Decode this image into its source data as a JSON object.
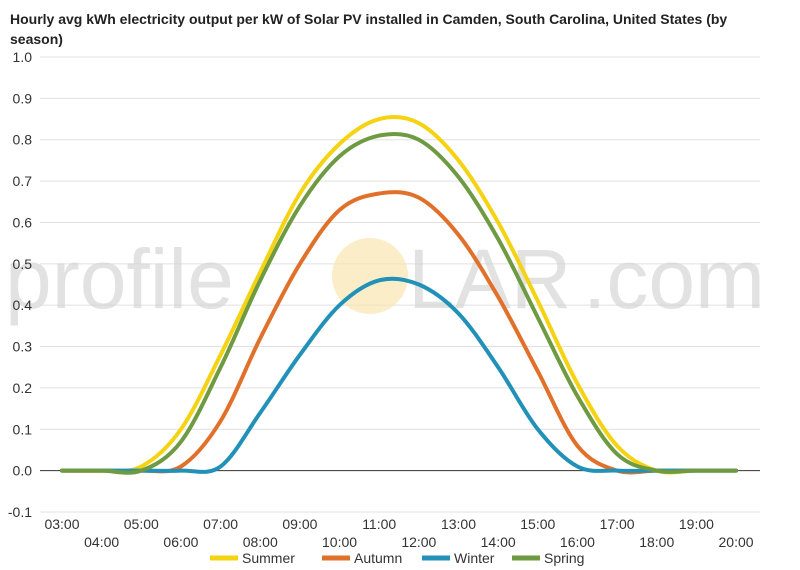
{
  "chart_data": {
    "type": "line",
    "title": "Hourly avg kWh electricity output per kW of Solar PV installed in Camden, South Carolina, United States (by season)",
    "xlabel": "",
    "ylabel": "",
    "x": [
      "03:00",
      "04:00",
      "05:00",
      "06:00",
      "07:00",
      "08:00",
      "09:00",
      "10:00",
      "11:00",
      "12:00",
      "13:00",
      "14:00",
      "15:00",
      "16:00",
      "17:00",
      "18:00",
      "19:00",
      "20:00"
    ],
    "ylim": [
      -0.1,
      1.0
    ],
    "yticks": [
      "1.0",
      "0.9",
      "0.8",
      "0.7",
      "0.6",
      "0.5",
      "0.4",
      "0.3",
      "0.2",
      "0.1",
      "0.0",
      "-0.1"
    ],
    "grid": true,
    "legend": "bottom",
    "series": [
      {
        "name": "Summer",
        "color": "#f5d312",
        "values": [
          0,
          0,
          0.01,
          0.1,
          0.28,
          0.48,
          0.67,
          0.79,
          0.85,
          0.84,
          0.75,
          0.6,
          0.41,
          0.21,
          0.06,
          0.0,
          0,
          0
        ]
      },
      {
        "name": "Autumn",
        "color": "#e0702a",
        "values": [
          0,
          0,
          0,
          0.01,
          0.12,
          0.32,
          0.5,
          0.63,
          0.67,
          0.66,
          0.57,
          0.42,
          0.24,
          0.06,
          0.0,
          0,
          0,
          0
        ]
      },
      {
        "name": "Winter",
        "color": "#2191b8",
        "values": [
          0,
          0,
          0,
          0,
          0.01,
          0.14,
          0.28,
          0.4,
          0.46,
          0.45,
          0.38,
          0.25,
          0.1,
          0.01,
          0,
          0,
          0,
          0
        ]
      },
      {
        "name": "Spring",
        "color": "#6e9a42",
        "values": [
          0,
          0,
          0,
          0.07,
          0.25,
          0.46,
          0.64,
          0.76,
          0.81,
          0.8,
          0.71,
          0.56,
          0.37,
          0.18,
          0.04,
          0,
          0,
          0
        ]
      }
    ]
  },
  "watermark": {
    "left": "profile",
    "middle": "LAR",
    "right": ".com"
  }
}
